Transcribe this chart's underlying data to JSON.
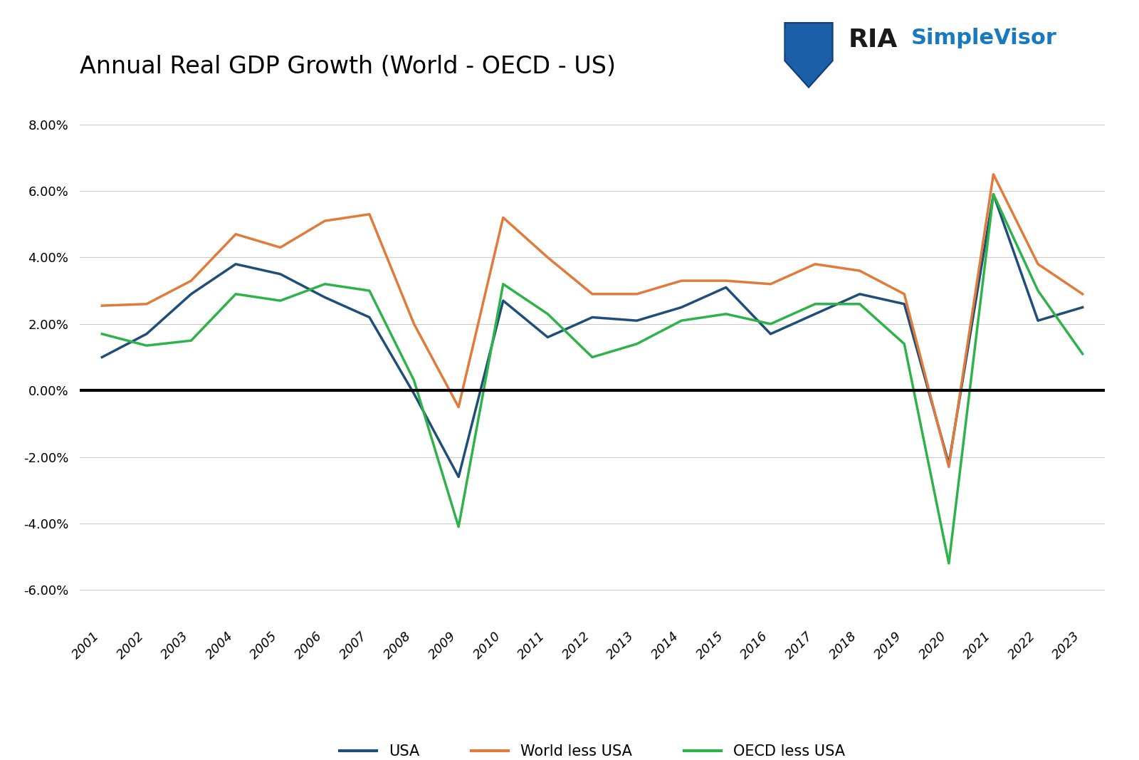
{
  "title": "Annual Real GDP Growth (World - OECD - US)",
  "years": [
    2001,
    2002,
    2003,
    2004,
    2005,
    2006,
    2007,
    2008,
    2009,
    2010,
    2011,
    2012,
    2013,
    2014,
    2015,
    2016,
    2017,
    2018,
    2019,
    2020,
    2021,
    2022,
    2023
  ],
  "usa": [
    1.0,
    1.7,
    2.9,
    3.8,
    3.5,
    2.8,
    2.2,
    -0.1,
    -2.6,
    2.7,
    1.6,
    2.2,
    2.1,
    2.5,
    3.1,
    1.7,
    2.3,
    2.9,
    2.6,
    -2.2,
    5.9,
    2.1,
    2.5
  ],
  "world_less_usa": [
    2.55,
    2.6,
    3.3,
    4.7,
    4.3,
    5.1,
    5.3,
    2.0,
    -0.5,
    5.2,
    4.0,
    2.9,
    2.9,
    3.3,
    3.3,
    3.2,
    3.8,
    3.6,
    2.9,
    -2.3,
    6.5,
    3.8,
    2.9
  ],
  "oecd_less_usa": [
    1.7,
    1.35,
    1.5,
    2.9,
    2.7,
    3.2,
    3.0,
    0.3,
    -4.1,
    3.2,
    2.3,
    1.0,
    1.4,
    2.1,
    2.3,
    2.0,
    2.6,
    2.6,
    1.4,
    -5.2,
    5.9,
    3.0,
    1.1
  ],
  "usa_color": "#1f4e79",
  "world_color": "#e07b39",
  "oecd_color": "#2db34a",
  "ylim_min": -7.0,
  "ylim_max": 9.0,
  "yticks": [
    -6.0,
    -4.0,
    -2.0,
    0.0,
    2.0,
    4.0,
    6.0,
    8.0
  ],
  "background_color": "#ffffff",
  "grid_color": "#cccccc",
  "zero_line_color": "#000000",
  "title_fontsize": 24,
  "tick_fontsize": 13,
  "legend_fontsize": 15,
  "line_width": 2.5,
  "usa_label": "USA",
  "world_label": "World less USA",
  "oecd_label": "OECD less USA",
  "ria_text": "RIA",
  "simplevisor_text": "SimpleVisor",
  "ria_color": "#1a1a1a",
  "simplevisor_color": "#1a7abf"
}
